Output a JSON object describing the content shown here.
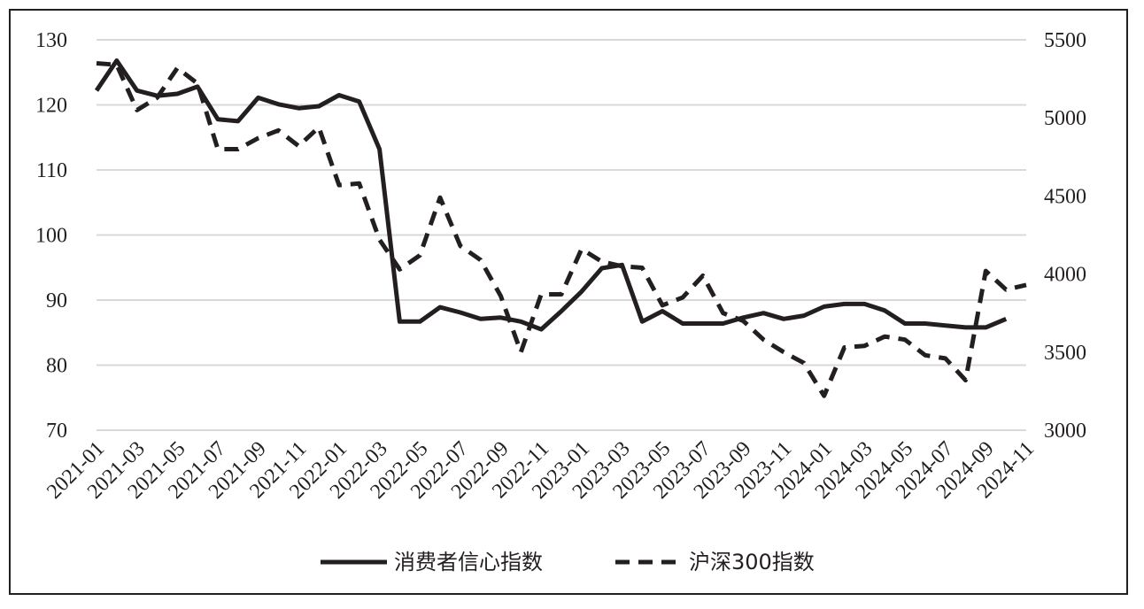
{
  "chart_data": {
    "type": "line",
    "grid": true,
    "legend_position": "bottom-center",
    "x": [
      "2021-01",
      "2021-02",
      "2021-03",
      "2021-04",
      "2021-05",
      "2021-06",
      "2021-07",
      "2021-08",
      "2021-09",
      "2021-10",
      "2021-11",
      "2021-12",
      "2022-01",
      "2022-02",
      "2022-03",
      "2022-04",
      "2022-05",
      "2022-06",
      "2022-07",
      "2022-08",
      "2022-09",
      "2022-10",
      "2022-11",
      "2022-12",
      "2023-01",
      "2023-02",
      "2023-03",
      "2023-04",
      "2023-05",
      "2023-06",
      "2023-07",
      "2023-08",
      "2023-09",
      "2023-10",
      "2023-11",
      "2023-12",
      "2024-01",
      "2024-02",
      "2024-03",
      "2024-04",
      "2024-05",
      "2024-06",
      "2024-07",
      "2024-08",
      "2024-09",
      "2024-10",
      "2024-11"
    ],
    "x_tick_labels": [
      "2021-01",
      "2021-03",
      "2021-05",
      "2021-07",
      "2021-09",
      "2021-11",
      "2022-01",
      "2022-03",
      "2022-05",
      "2022-07",
      "2022-09",
      "2022-11",
      "2023-01",
      "2023-03",
      "2023-05",
      "2023-07",
      "2023-09",
      "2023-11",
      "2024-01",
      "2024-03",
      "2024-05",
      "2024-07",
      "2024-09",
      "2024-11"
    ],
    "y_left": {
      "range": [
        70,
        130
      ],
      "ticks": [
        "70",
        "80",
        "90",
        "100",
        "110",
        "120",
        "130"
      ]
    },
    "y_right": {
      "range": [
        3000,
        5500
      ],
      "ticks": [
        "3000",
        "3500",
        "4000",
        "4500",
        "5000",
        "5500"
      ]
    },
    "series": [
      {
        "name": "消费者信心指数",
        "axis": "left",
        "style": "solid",
        "values": [
          122.2,
          126.8,
          122.2,
          121.4,
          121.7,
          122.8,
          117.8,
          117.5,
          121.1,
          120.1,
          119.5,
          119.8,
          121.5,
          120.5,
          113.2,
          86.7,
          86.7,
          88.9,
          88.1,
          87.1,
          87.3,
          86.7,
          85.5,
          88.3,
          91.3,
          94.9,
          95.4,
          86.7,
          88.3,
          86.4,
          86.4,
          86.4,
          87.3,
          88.0,
          87.1,
          87.6,
          89.0,
          89.4,
          89.4,
          88.4,
          86.4,
          86.4,
          86.1,
          85.8,
          85.8,
          87.1,
          null
        ]
      },
      {
        "name": "沪深300指数",
        "axis": "right",
        "style": "dashed",
        "values": [
          5350,
          5340,
          5050,
          5130,
          5320,
          5220,
          4800,
          4800,
          4870,
          4920,
          4820,
          4940,
          4570,
          4580,
          4220,
          4030,
          4120,
          4490,
          4180,
          4090,
          3860,
          3500,
          3870,
          3870,
          4160,
          4080,
          4050,
          4040,
          3800,
          3850,
          3990,
          3750,
          3700,
          3580,
          3500,
          3430,
          3220,
          3530,
          3540,
          3600,
          3580,
          3480,
          3460,
          3320,
          4020,
          3900,
          3930
        ]
      }
    ]
  }
}
